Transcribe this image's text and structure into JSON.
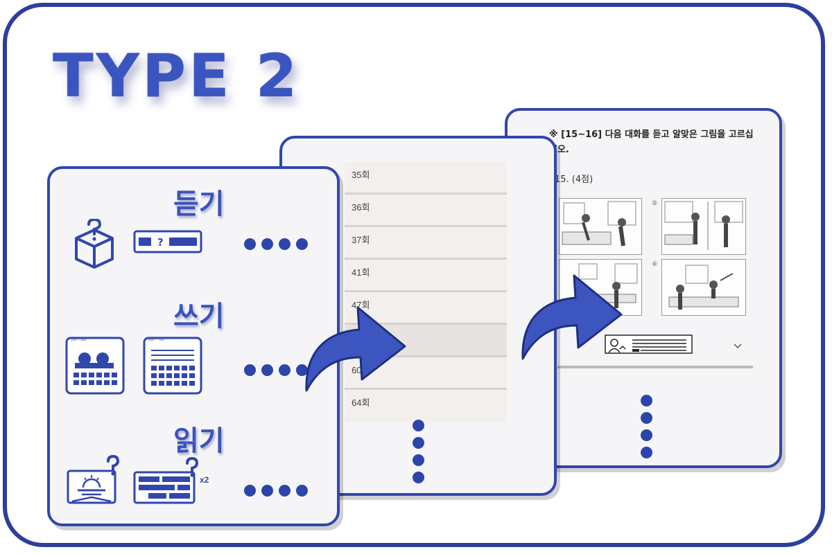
{
  "title": "TYPE 2",
  "sections": [
    {
      "heading": "듣기",
      "icons": [
        "box-question-icon",
        "blank-bar-question-icon"
      ]
    },
    {
      "heading": "쓰기",
      "icons": [
        "manuscript-photo-grid-icon",
        "manuscript-grid-icon"
      ],
      "small_labels": [
        "200 ~ 300",
        "600 ~ 700"
      ]
    },
    {
      "heading": "읽기",
      "icons": [
        "picture-question-icon",
        "text-blocks-question-icon"
      ],
      "multiplier": "x2"
    }
  ],
  "episodes": {
    "items": [
      "35회",
      "36회",
      "37회",
      "41회",
      "47회",
      "",
      "60회",
      "64회"
    ],
    "selected_index": 5
  },
  "question": {
    "instruction": "※ [15~16] 다음 대화를 듣고 알맞은 그림을 고르십시오.",
    "number": "15. (4점)",
    "choice_labels": [
      "②",
      "④"
    ]
  },
  "colors": {
    "accent": "#2c3f9e",
    "card_border": "#3147ad",
    "heading": "#3a53bd"
  }
}
